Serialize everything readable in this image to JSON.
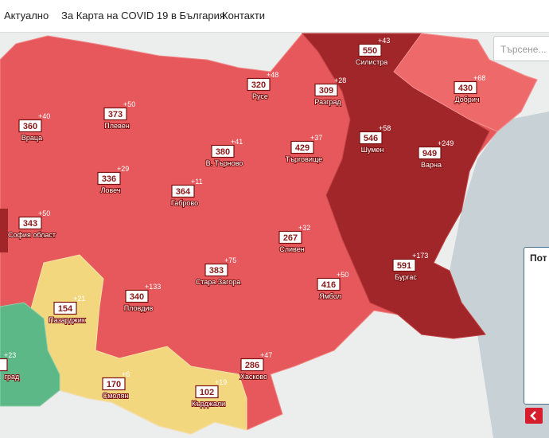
{
  "nav": {
    "items": [
      "Актуално",
      "За Карта на COVID 19 в България",
      "Контакти"
    ]
  },
  "search": {
    "placeholder": "Търсене..."
  },
  "panel": {
    "title": "Пот"
  },
  "regions": [
    {
      "name": "Силистра",
      "value": 550,
      "delta": "+43"
    },
    {
      "name": "Русе",
      "value": 320,
      "delta": "+48"
    },
    {
      "name": "Разград",
      "value": 309,
      "delta": "+28"
    },
    {
      "name": "Добрич",
      "value": 430,
      "delta": "+68"
    },
    {
      "name": "Плевен",
      "value": 373,
      "delta": "+50"
    },
    {
      "name": "Враца",
      "value": 360,
      "delta": "+40"
    },
    {
      "name": "Шумен",
      "value": 546,
      "delta": "+58"
    },
    {
      "name": "Търговище",
      "value": 429,
      "delta": "+37"
    },
    {
      "name": "В. Търново",
      "value": 380,
      "delta": "+41"
    },
    {
      "name": "Варна",
      "value": 949,
      "delta": "+249"
    },
    {
      "name": "Ловеч",
      "value": 336,
      "delta": "+29"
    },
    {
      "name": "Габрово",
      "value": 364,
      "delta": "+11"
    },
    {
      "name": "София област",
      "value": 343,
      "delta": "+50"
    },
    {
      "name": "Сливен",
      "value": 267,
      "delta": "+32"
    },
    {
      "name": "Бургас",
      "value": 591,
      "delta": "+173"
    },
    {
      "name": "Стара Загора",
      "value": 383,
      "delta": "+75"
    },
    {
      "name": "Ямбол",
      "value": 416,
      "delta": "+50"
    },
    {
      "name": "Пазарджик",
      "value": 154,
      "delta": "+21"
    },
    {
      "name": "Пловдив",
      "value": 340,
      "delta": "+133"
    },
    {
      "name": "Хасково",
      "value": 286,
      "delta": "+47"
    },
    {
      "name": "Смолян",
      "value": 170,
      "delta": "+6"
    },
    {
      "name": "Кърджали",
      "value": 102,
      "delta": "+19"
    },
    {
      "name": "град",
      "delta": "+23"
    }
  ]
}
